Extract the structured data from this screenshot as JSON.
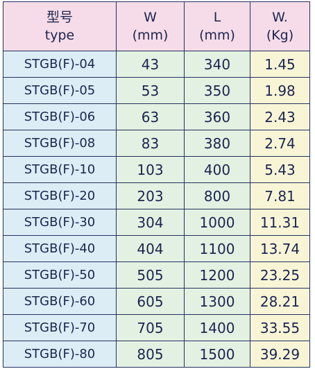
{
  "table": {
    "header": [
      [
        "型号",
        "type"
      ],
      [
        "W",
        "(mm)"
      ],
      [
        "L",
        "(mm)"
      ],
      [
        "W.",
        "(Kg)"
      ]
    ],
    "rows": [
      [
        "STGB(F)-04",
        43,
        340,
        1.45
      ],
      [
        "STGB(F)-05",
        53,
        350,
        1.98
      ],
      [
        "STGB(F)-06",
        63,
        360,
        2.43
      ],
      [
        "STGB(F)-08",
        83,
        380,
        2.74
      ],
      [
        "STGB(F)-10",
        103,
        400,
        5.43
      ],
      [
        "STGB(F)-20",
        203,
        800,
        7.81
      ],
      [
        "STGB(F)-30",
        304,
        1000,
        11.31
      ],
      [
        "STGB(F)-40",
        404,
        1100,
        13.74
      ],
      [
        "STGB(F)-50",
        505,
        1200,
        23.25
      ],
      [
        "STGB(F)-60",
        605,
        1300,
        28.21
      ],
      [
        "STGB(F)-70",
        705,
        1400,
        33.55
      ],
      [
        "STGB(F)-80",
        805,
        1500,
        39.29
      ]
    ]
  }
}
